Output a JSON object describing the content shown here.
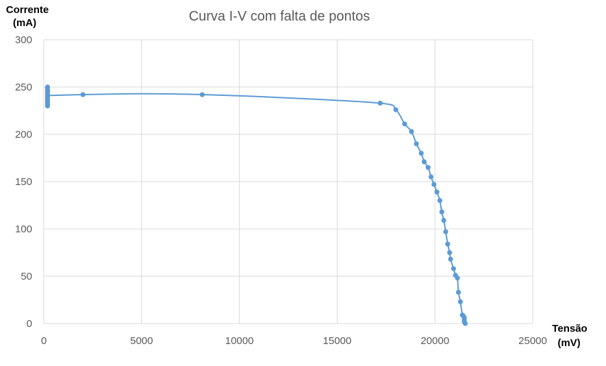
{
  "chart_data": {
    "type": "scatter",
    "title": "Curva I-V com falta de pontos",
    "xlabel": [
      "Tensão",
      "(mV)"
    ],
    "ylabel": [
      "Corrente",
      "(mA)"
    ],
    "xlim": [
      0,
      25000
    ],
    "ylim": [
      0,
      300
    ],
    "xticks": [
      "0",
      "5000",
      "10000",
      "15000",
      "20000",
      "25000"
    ],
    "yticks": [
      "0",
      "50",
      "100",
      "150",
      "200",
      "250",
      "300"
    ],
    "grid": true,
    "legend": "none",
    "series_color": "#5b9bd5",
    "series": [
      {
        "smooth_line": true,
        "points": [
          [
            190,
            250
          ],
          [
            190,
            248
          ],
          [
            190,
            246
          ],
          [
            190,
            244
          ],
          [
            190,
            242
          ],
          [
            190,
            240
          ],
          [
            190,
            238
          ],
          [
            190,
            236
          ],
          [
            190,
            234
          ],
          [
            190,
            232
          ],
          [
            190,
            230
          ],
          [
            2000,
            242
          ],
          [
            8100,
            242
          ],
          [
            17200,
            233
          ],
          [
            18000,
            226
          ],
          [
            18450,
            211
          ],
          [
            18800,
            203
          ],
          [
            19050,
            190
          ],
          [
            19300,
            180
          ],
          [
            19450,
            171
          ],
          [
            19650,
            165
          ],
          [
            19800,
            155
          ],
          [
            19950,
            147
          ],
          [
            20100,
            139
          ],
          [
            20250,
            130
          ],
          [
            20350,
            118
          ],
          [
            20450,
            109
          ],
          [
            20550,
            97
          ],
          [
            20650,
            84
          ],
          [
            20750,
            75
          ],
          [
            20800,
            68
          ],
          [
            20950,
            58
          ],
          [
            21050,
            51
          ],
          [
            21150,
            48
          ],
          [
            21200,
            33
          ],
          [
            21300,
            23
          ],
          [
            21400,
            9
          ],
          [
            21450,
            8
          ],
          [
            21500,
            6
          ],
          [
            21500,
            4
          ],
          [
            21500,
            2
          ],
          [
            21550,
            0
          ]
        ],
        "line": [
          [
            190,
            241
          ],
          [
            2000,
            242
          ],
          [
            5000,
            243
          ],
          [
            8100,
            242
          ],
          [
            12000,
            239
          ],
          [
            17200,
            233
          ],
          [
            18000,
            226
          ],
          [
            18450,
            211
          ],
          [
            18800,
            203
          ],
          [
            19050,
            190
          ],
          [
            19300,
            180
          ],
          [
            19450,
            171
          ],
          [
            19650,
            165
          ],
          [
            19800,
            155
          ],
          [
            19950,
            147
          ],
          [
            20100,
            139
          ],
          [
            20250,
            130
          ],
          [
            20350,
            118
          ],
          [
            20450,
            109
          ],
          [
            20550,
            97
          ],
          [
            20650,
            84
          ],
          [
            20750,
            75
          ],
          [
            20800,
            68
          ],
          [
            20950,
            58
          ],
          [
            21050,
            51
          ],
          [
            21150,
            48
          ],
          [
            21200,
            33
          ],
          [
            21300,
            23
          ],
          [
            21400,
            9
          ],
          [
            21500,
            4
          ],
          [
            21550,
            0
          ]
        ]
      }
    ]
  }
}
